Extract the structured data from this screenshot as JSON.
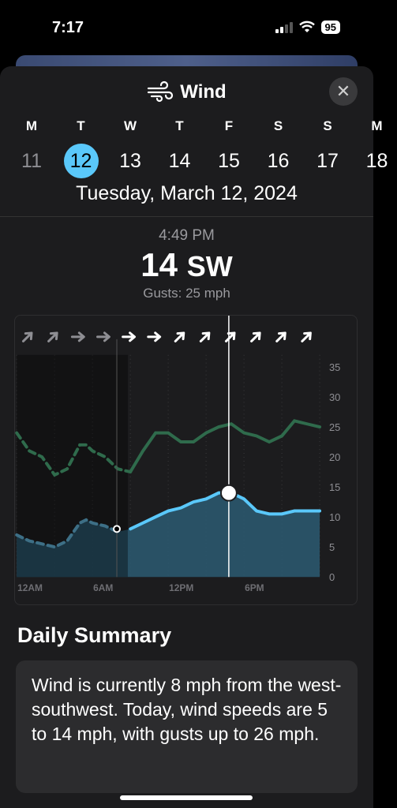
{
  "status_bar": {
    "time": "7:17",
    "battery": "95"
  },
  "header": {
    "title": "Wind",
    "close_icon": "close-icon"
  },
  "days": [
    {
      "letter": "M",
      "number": "11",
      "state": "past"
    },
    {
      "letter": "T",
      "number": "12",
      "state": "selected"
    },
    {
      "letter": "W",
      "number": "13",
      "state": "future"
    },
    {
      "letter": "T",
      "number": "14",
      "state": "future"
    },
    {
      "letter": "F",
      "number": "15",
      "state": "future"
    },
    {
      "letter": "S",
      "number": "16",
      "state": "future"
    },
    {
      "letter": "S",
      "number": "17",
      "state": "future"
    },
    {
      "letter": "M",
      "number": "18",
      "state": "future"
    }
  ],
  "selected_date": "Tuesday, March 12, 2024",
  "reading": {
    "time": "4:49 PM",
    "speed": "14",
    "direction": "SW",
    "gusts": "Gusts: 25 mph"
  },
  "chart_data": {
    "type": "line",
    "x_ticks": [
      "12AM",
      "6AM",
      "12PM",
      "6PM"
    ],
    "y_ticks": [
      "35",
      "30",
      "25",
      "20",
      "15",
      "10",
      "5",
      "0"
    ],
    "ylim": [
      0,
      37
    ],
    "xlim_hours": [
      0,
      24
    ],
    "current_hour": 8.8,
    "selected_hour": 16.8,
    "series": [
      {
        "name": "Wind",
        "x": [
          0,
          0.5,
          1,
          2,
          3,
          4,
          5,
          5.5,
          6,
          7,
          8,
          9,
          10,
          11,
          12,
          13,
          14,
          15,
          16,
          17,
          18,
          19,
          20,
          21,
          22,
          23,
          24
        ],
        "values": [
          7,
          6.5,
          6,
          5.5,
          5,
          6,
          9,
          9.5,
          9,
          8.5,
          7.5,
          8,
          9,
          10,
          11,
          11.5,
          12.5,
          13,
          14,
          14,
          13,
          11,
          10.5,
          10.5,
          11,
          11,
          11
        ],
        "color": "#5ac8fa"
      },
      {
        "name": "Gusts",
        "x": [
          0,
          1,
          2,
          3,
          4,
          5,
          5.5,
          6,
          7,
          8,
          9,
          10,
          11,
          12,
          13,
          14,
          15,
          16,
          17,
          18,
          19,
          20,
          21,
          22,
          23,
          24
        ],
        "values": [
          24,
          21,
          20,
          17,
          18,
          22,
          22,
          21,
          20,
          18,
          17.5,
          21,
          24,
          24,
          22.5,
          22.5,
          24,
          25,
          25.5,
          24,
          23.5,
          22.5,
          23.5,
          26,
          25.5,
          25
        ],
        "color": "#2f6b4c"
      }
    ],
    "arrows": [
      45,
      45,
      90,
      90,
      90,
      90,
      45,
      45,
      45,
      45,
      45,
      45
    ]
  },
  "summary": {
    "title": "Daily Summary",
    "text": "Wind is currently 8 mph from the west-southwest. Today, wind speeds are 5 to 14 mph, with gusts up to 26 mph."
  }
}
